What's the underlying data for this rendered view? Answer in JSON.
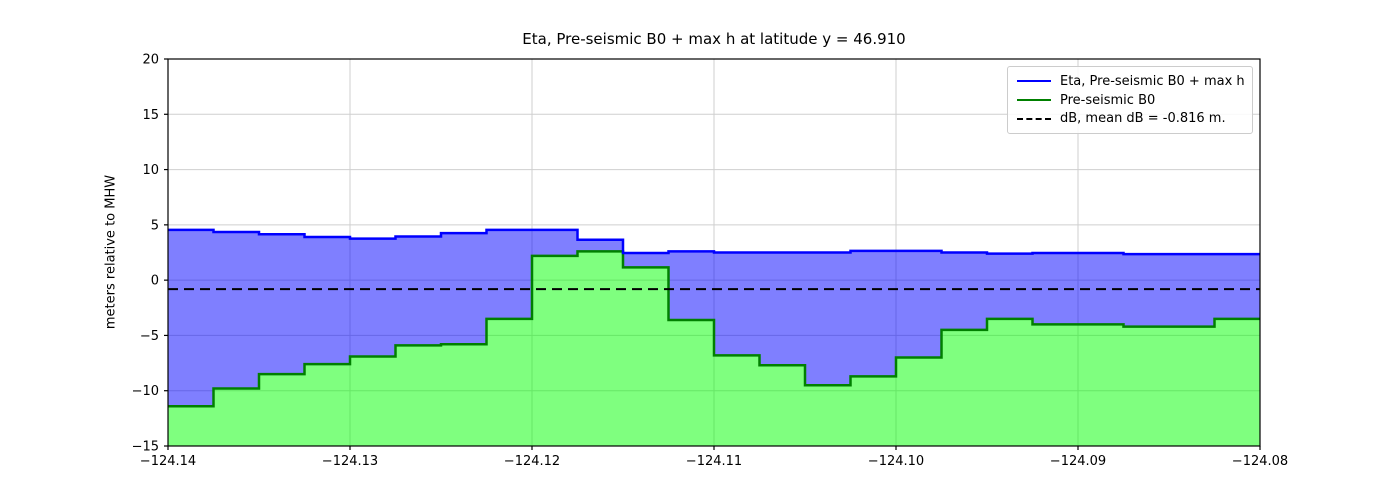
{
  "title": "Eta, Pre-seismic B0 + max h at latitude y = 46.910",
  "ylabel": "meters relative to MHW",
  "legend": {
    "items": [
      {
        "label": "Eta, Pre-seismic B0 + max h",
        "color": "#0000ff",
        "style": "solid"
      },
      {
        "label": "Pre-seismic B0",
        "color": "#008000",
        "style": "solid"
      },
      {
        "label": "dB, mean dB = -0.816 m.",
        "color": "#000000",
        "style": "dashed"
      }
    ]
  },
  "chart_data": {
    "type": "area",
    "step_mode": "post",
    "title": "Eta, Pre-seismic B0 + max h at latitude y = 46.910",
    "xlabel": "",
    "ylabel": "meters relative to MHW",
    "xlim": [
      -124.14,
      -124.08
    ],
    "ylim": [
      -15,
      20
    ],
    "grid": true,
    "grid_color": "#cfcfcf",
    "x_start": -124.14,
    "x_step": 0.0025,
    "x_tick_values": [
      -124.14,
      -124.13,
      -124.12,
      -124.11,
      -124.1,
      -124.09,
      -124.08
    ],
    "x_tick_labels": [
      "−124.14",
      "−124.13",
      "−124.12",
      "−124.11",
      "−124.10",
      "−124.09",
      "−124.08"
    ],
    "y_tick_values": [
      20,
      15,
      10,
      5,
      0,
      -5,
      -10,
      -15
    ],
    "y_tick_labels": [
      "20",
      "15",
      "10",
      "5",
      "0",
      "−5",
      "−10",
      "−15"
    ],
    "series": [
      {
        "name": "Eta, Pre-seismic B0 + max h",
        "line_color": "#0000ff",
        "fill_color": "rgba(0,0,255,0.5)",
        "fill_between": "Pre-seismic B0",
        "values": [
          4.55,
          4.35,
          4.15,
          3.9,
          3.75,
          3.95,
          4.25,
          4.55,
          4.55,
          3.65,
          2.45,
          2.6,
          2.5,
          2.5,
          2.5,
          2.65,
          2.65,
          2.5,
          2.4,
          2.45,
          2.45,
          2.35,
          2.35,
          2.35
        ]
      },
      {
        "name": "Pre-seismic B0",
        "line_color": "#008000",
        "fill_color": "rgba(0,255,0,0.5)",
        "fill_between": "bottom",
        "values": [
          -11.4,
          -9.8,
          -8.5,
          -7.6,
          -6.9,
          -5.9,
          -5.8,
          -3.5,
          2.2,
          2.6,
          1.15,
          -3.6,
          -6.8,
          -7.7,
          -9.5,
          -8.7,
          -7.0,
          -4.5,
          -3.5,
          -4.0,
          -4.0,
          -4.2,
          -4.2,
          -3.5
        ]
      }
    ],
    "dashed_line": {
      "name": "dB",
      "value": -0.816,
      "color": "#000000",
      "label": "dB, mean dB = -0.816 m."
    },
    "legend_position": "upper right"
  }
}
